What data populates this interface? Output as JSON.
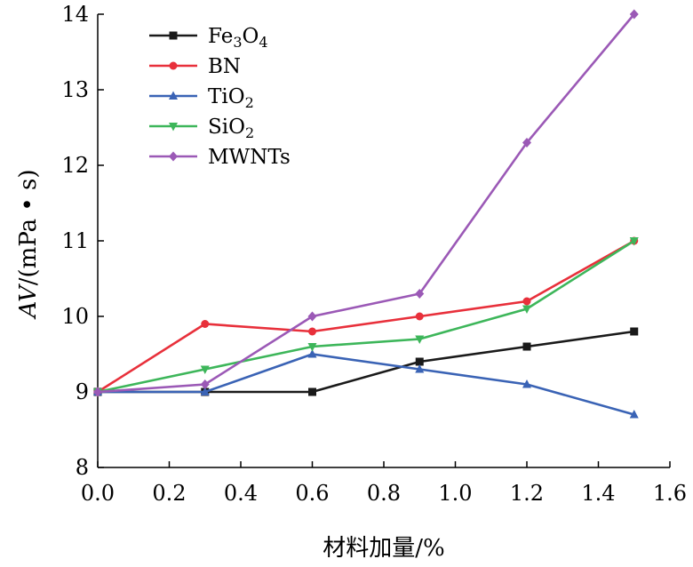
{
  "chart_data": {
    "type": "line",
    "xlabel": "材料加量/%",
    "ylabel_main": "AV",
    "ylabel_unit": "/(mPa • s)",
    "xlim": [
      0,
      1.6
    ],
    "ylim": [
      8,
      14
    ],
    "x_ticks": [
      0,
      0.2,
      0.4,
      0.6,
      0.8,
      1.0,
      1.2,
      1.4,
      1.6
    ],
    "x_tick_labels": [
      "0.0",
      "0.2",
      "0.4",
      "0.6",
      "0.8",
      "1.0",
      "1.2",
      "1.4",
      "1.6"
    ],
    "y_ticks": [
      8,
      9,
      10,
      11,
      12,
      13,
      14
    ],
    "y_tick_labels": [
      "8",
      "9",
      "10",
      "11",
      "12",
      "13",
      "14"
    ],
    "grid": false,
    "legend_position": "top-left",
    "x": [
      0,
      0.3,
      0.6,
      0.9,
      1.2,
      1.5
    ],
    "series": [
      {
        "label_main": "Fe",
        "label_sub1": "3",
        "label_mid": "O",
        "label_sub2": "4",
        "color": "#1a1a1a",
        "marker": "square",
        "values": [
          9.0,
          9.0,
          9.0,
          9.4,
          9.6,
          9.8
        ]
      },
      {
        "label_main": "BN",
        "color": "#e8303b",
        "marker": "circle",
        "values": [
          9.0,
          9.9,
          9.8,
          10.0,
          10.2,
          11.0
        ]
      },
      {
        "label_main": "TiO",
        "label_sub1": "2",
        "color": "#3a63b5",
        "marker": "triangle-up",
        "values": [
          9.0,
          9.0,
          9.5,
          9.3,
          9.1,
          8.7
        ]
      },
      {
        "label_main": "SiO",
        "label_sub1": "2",
        "color": "#3db65a",
        "marker": "triangle-down",
        "values": [
          9.0,
          9.3,
          9.6,
          9.7,
          10.1,
          11.0
        ]
      },
      {
        "label_main": "MWNTs",
        "color": "#9b59b6",
        "marker": "diamond",
        "values": [
          9.0,
          9.1,
          10.0,
          10.3,
          12.3,
          14.0
        ]
      }
    ]
  }
}
